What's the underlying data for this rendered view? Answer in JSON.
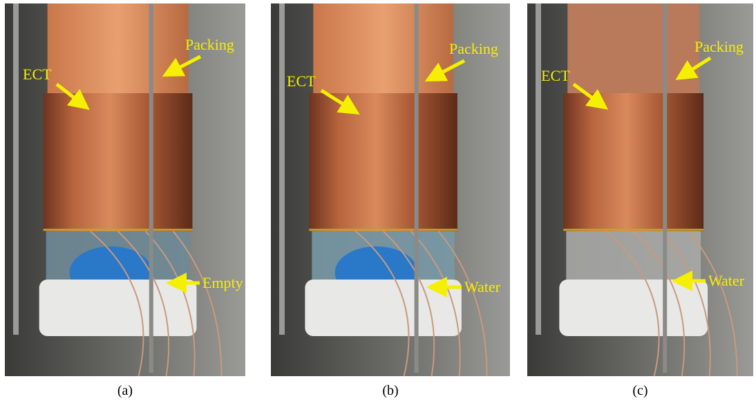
{
  "panels": [
    {
      "caption": "(a)",
      "labels": {
        "ect": "ECT",
        "packing": "Packing",
        "lower": "Empty"
      }
    },
    {
      "caption": "(b)",
      "labels": {
        "ect": "ECT",
        "packing": "Packing",
        "lower": "Water"
      }
    },
    {
      "caption": "(c)",
      "labels": {
        "ect": "ECT",
        "packing": "Packing",
        "lower": "Water"
      }
    }
  ]
}
